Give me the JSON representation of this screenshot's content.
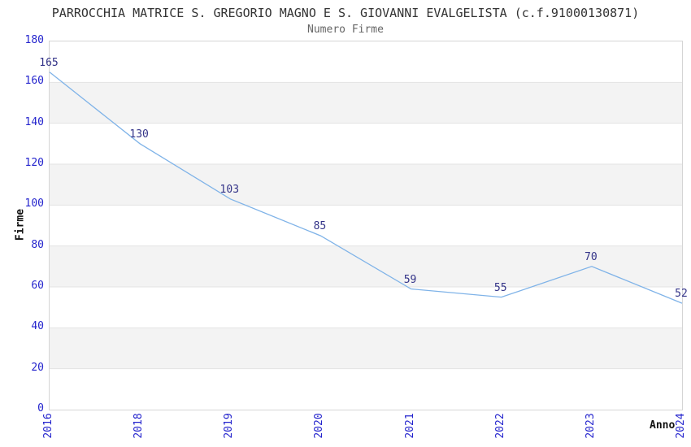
{
  "chart_data": {
    "type": "line",
    "title": "PARROCCHIA MATRICE S. GREGORIO MAGNO E S. GIOVANNI EVALGELISTA (c.f.91000130871)",
    "subtitle": "Numero Firme",
    "xlabel": "Anno",
    "ylabel": "Firme",
    "categories": [
      "2016",
      "2018",
      "2019",
      "2020",
      "2021",
      "2022",
      "2023",
      "2024"
    ],
    "series": [
      {
        "name": "Numero Firme",
        "values": [
          165,
          130,
          103,
          85,
          59,
          55,
          70,
          52
        ]
      }
    ],
    "ylim": [
      0,
      180
    ],
    "y_ticks": [
      0,
      20,
      40,
      60,
      80,
      100,
      120,
      140,
      160,
      180
    ],
    "grid": "horizontal-bands-alternating",
    "legend": "none",
    "data_labels_visible": true,
    "colors": {
      "line": "#7fb3e8",
      "data_label": "#333388",
      "tick_label": "#2424cd",
      "title": "#333333",
      "subtitle": "#666666",
      "band_gray": "#f3f3f3",
      "grid_line": "#e3e3e3",
      "plot_border": "#d5d5d5",
      "axis_title": "#111111"
    }
  }
}
